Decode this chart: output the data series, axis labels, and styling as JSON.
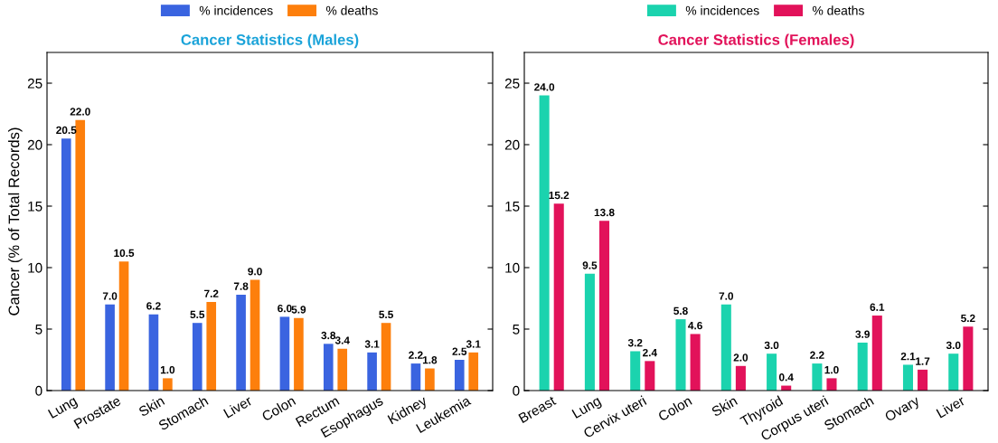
{
  "chart_data": [
    {
      "type": "bar",
      "title": "Cancer Statistics (Males)",
      "ylabel": "Cancer (% of Total Records)",
      "categories": [
        "Lung",
        "Prostate",
        "Skin",
        "Stomach",
        "Liver",
        "Colon",
        "Rectum",
        "Esophagus",
        "Kidney",
        "Leukemia"
      ],
      "series": [
        {
          "name": "% incidences",
          "color": "#3a64e0",
          "values": [
            20.5,
            7.0,
            6.2,
            5.5,
            7.8,
            6.0,
            3.8,
            3.1,
            2.2,
            2.5
          ],
          "value_labels": [
            "20.5",
            "7.0",
            "6.2",
            "5.5",
            "7.8",
            "6.0",
            "3.8",
            "3.1",
            "2.2",
            "2.5"
          ]
        },
        {
          "name": "% deaths",
          "color": "#fd7f0c",
          "values": [
            22.0,
            10.5,
            1.0,
            7.2,
            9.0,
            5.9,
            3.4,
            5.5,
            1.8,
            3.1
          ],
          "value_labels": [
            "22.0",
            "10.5",
            "1.0",
            "7.2",
            "9.0",
            "5.9",
            "3.4",
            "5.5",
            "1.8",
            "3.1"
          ]
        }
      ],
      "ylim": [
        0,
        27.5
      ],
      "yticks": [
        0,
        5,
        10,
        15,
        20,
        25
      ],
      "grid": false,
      "legend": "top"
    },
    {
      "type": "bar",
      "title": "Cancer Statistics (Females)",
      "categories": [
        "Breast",
        "Lung",
        "Cervix uteri",
        "Colon",
        "Skin",
        "Thyroid",
        "Corpus uteri",
        "Stomach",
        "Ovary",
        "Liver"
      ],
      "series": [
        {
          "name": "% incidences",
          "color": "#1bd3ae",
          "values": [
            24.0,
            9.5,
            3.2,
            5.8,
            7.0,
            3.0,
            2.2,
            3.9,
            2.1,
            3.0
          ],
          "value_labels": [
            "24.0",
            "9.5",
            "3.2",
            "5.8",
            "7.0",
            "3.0",
            "2.2",
            "3.9",
            "2.1",
            "3.0"
          ]
        },
        {
          "name": "% deaths",
          "color": "#e2125a",
          "values": [
            15.2,
            13.8,
            2.4,
            4.6,
            2.0,
            0.4,
            1.0,
            6.1,
            1.7,
            5.2
          ],
          "value_labels": [
            "15.2",
            "13.8",
            "2.4",
            "4.6",
            "2.0",
            "0.4",
            "1.0",
            "6.1",
            "1.7",
            "5.2"
          ]
        }
      ],
      "ylim": [
        0,
        27.5
      ],
      "yticks": [
        0,
        5,
        10,
        15,
        20,
        25
      ],
      "grid": false,
      "legend": "top"
    }
  ]
}
